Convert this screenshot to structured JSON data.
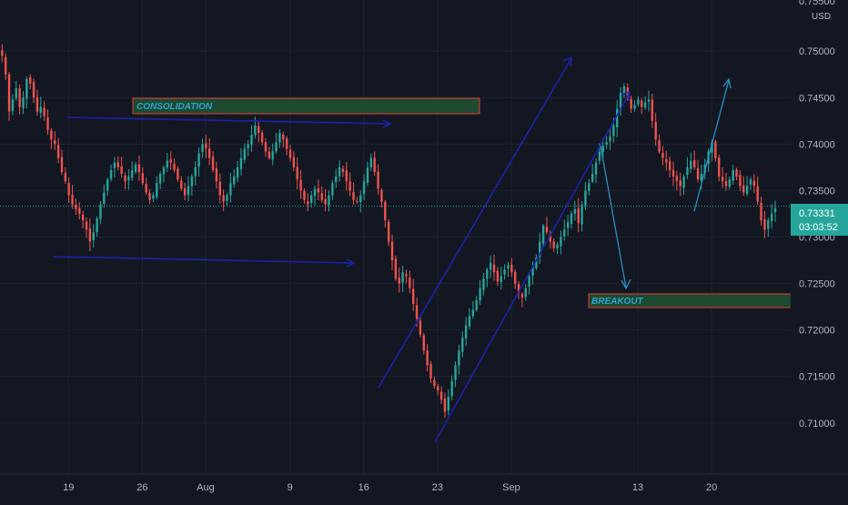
{
  "colors": {
    "background": "#131722",
    "grid": "#1f2330",
    "up": "#26a69a",
    "down": "#ef5350",
    "axis_text": "#b2b5be",
    "price_label_bg": "#26a69a",
    "trendline": "#1e22a8",
    "projection_arrow": "#2b8fc4",
    "zone_fill": "#1d4a30",
    "zone_border": "#e53935",
    "zone_text": "#2ea2d3"
  },
  "axis": {
    "currency": "USD",
    "top_partial_label": "0.75500"
  },
  "annotations": {
    "consolidation_label": "CONSOLIDATION",
    "breakout_label": "BREAKOUT"
  },
  "price_label": {
    "price": "0.73331",
    "countdown": "03:03:52"
  },
  "chart_data": {
    "type": "candlestick",
    "instrument_quote_currency": "USD",
    "ylim": [
      0.7045,
      0.7555
    ],
    "y_ticks": [
      0.71,
      0.715,
      0.72,
      0.725,
      0.73,
      0.735,
      0.74,
      0.745,
      0.75
    ],
    "y_tick_labels": [
      "0.71000",
      "0.71500",
      "0.72000",
      "0.72500",
      "0.73000",
      "0.73500",
      "0.74000",
      "0.74500",
      "0.75000"
    ],
    "x_ticks": [
      0,
      7,
      13,
      21,
      28,
      35,
      42,
      54,
      61
    ],
    "x_tick_labels": [
      "19",
      "26",
      "Aug",
      "9",
      "16",
      "23",
      "Sep",
      "13",
      "20"
    ],
    "x_range": [
      -6.5,
      68.5
    ],
    "grid": true,
    "current_price": 0.73331,
    "bars_per_session": 3,
    "closes": [
      0.7495,
      0.7475,
      0.7435,
      0.7448,
      0.746,
      0.744,
      0.745,
      0.747,
      0.7465,
      0.745,
      0.7435,
      0.744,
      0.743,
      0.7415,
      0.7405,
      0.74,
      0.7385,
      0.737,
      0.736,
      0.7345,
      0.7335,
      0.733,
      0.7325,
      0.7318,
      0.7308,
      0.7295,
      0.7305,
      0.732,
      0.7335,
      0.7348,
      0.7362,
      0.7372,
      0.738,
      0.7375,
      0.7368,
      0.736,
      0.7365,
      0.7372,
      0.7378,
      0.737,
      0.7358,
      0.7348,
      0.734,
      0.7345,
      0.7358,
      0.7368,
      0.7375,
      0.7382,
      0.738,
      0.7372,
      0.7362,
      0.7352,
      0.7345,
      0.7355,
      0.7365,
      0.7375,
      0.739,
      0.74,
      0.7395,
      0.7385,
      0.7372,
      0.736,
      0.7345,
      0.7338,
      0.7345,
      0.7358,
      0.7365,
      0.7375,
      0.7385,
      0.7395,
      0.74,
      0.741,
      0.742,
      0.7412,
      0.7402,
      0.7392,
      0.7385,
      0.7392,
      0.7402,
      0.7412,
      0.7405,
      0.7395,
      0.7385,
      0.7375,
      0.7362,
      0.735,
      0.734,
      0.7335,
      0.7345,
      0.7352,
      0.7348,
      0.734,
      0.7335,
      0.7345,
      0.7358,
      0.7365,
      0.7375,
      0.737,
      0.736,
      0.735,
      0.734,
      0.7338,
      0.7345,
      0.736,
      0.7375,
      0.7385,
      0.737,
      0.7352,
      0.7338,
      0.7318,
      0.7295,
      0.7275,
      0.7255,
      0.725,
      0.7262,
      0.7258,
      0.7245,
      0.7228,
      0.7212,
      0.7195,
      0.7178,
      0.7162,
      0.7148,
      0.714,
      0.7135,
      0.7125,
      0.7112,
      0.7128,
      0.7145,
      0.7162,
      0.7178,
      0.7192,
      0.7205,
      0.7215,
      0.7222,
      0.7232,
      0.7245,
      0.7255,
      0.7265,
      0.7272,
      0.7262,
      0.7252,
      0.7258,
      0.7265,
      0.727,
      0.7262,
      0.725,
      0.724,
      0.7235,
      0.7245,
      0.7258,
      0.7268,
      0.7278,
      0.7295,
      0.7312,
      0.7305,
      0.7295,
      0.7288,
      0.7292,
      0.73,
      0.7308,
      0.7316,
      0.7325,
      0.733,
      0.7315,
      0.7335,
      0.735,
      0.7358,
      0.7368,
      0.738,
      0.7392,
      0.7398,
      0.7402,
      0.7408,
      0.742,
      0.7438,
      0.7455,
      0.7462,
      0.745,
      0.7438,
      0.7442,
      0.7448,
      0.744,
      0.7445,
      0.7448,
      0.7425,
      0.7405,
      0.7392,
      0.7385,
      0.738,
      0.7372,
      0.7365,
      0.736,
      0.7355,
      0.7365,
      0.7375,
      0.7382,
      0.7375,
      0.7362,
      0.7368,
      0.7378,
      0.7392,
      0.7402,
      0.7385,
      0.7365,
      0.736,
      0.7355,
      0.7362,
      0.7372,
      0.7365,
      0.7355,
      0.7348,
      0.7355,
      0.7362,
      0.7355,
      0.7338,
      0.7318,
      0.7308,
      0.7318,
      0.7325,
      0.7331
    ]
  }
}
